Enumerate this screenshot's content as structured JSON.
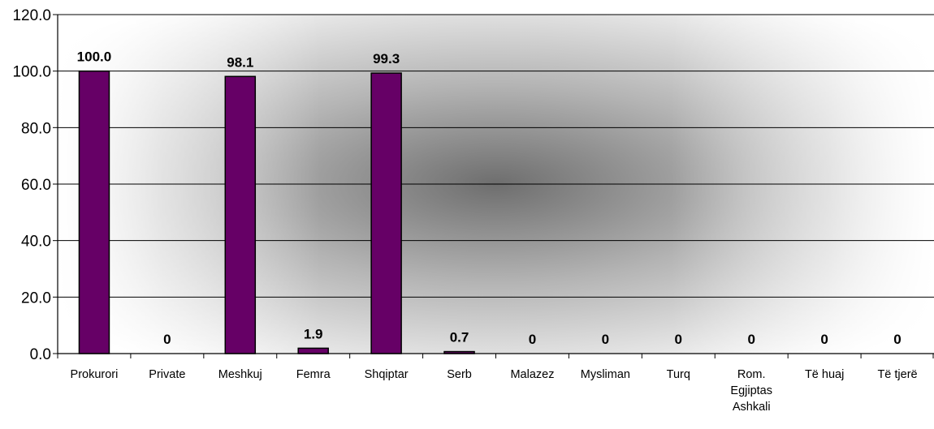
{
  "chart_data": {
    "type": "bar",
    "title": "",
    "xlabel": "",
    "ylabel": "",
    "ylim": [
      0,
      120
    ],
    "yticks": [
      0,
      20,
      40,
      60,
      80,
      100,
      120
    ],
    "ytick_labels": [
      "0.0",
      "20.0",
      "40.0",
      "60.0",
      "80.0",
      "100.0",
      "120.0"
    ],
    "grid": true,
    "legend": "none",
    "categories": [
      [
        "Prokurori"
      ],
      [
        "Private"
      ],
      [
        "Meshkuj"
      ],
      [
        "Femra"
      ],
      [
        "Shqiptar"
      ],
      [
        "Serb"
      ],
      [
        "Malazez"
      ],
      [
        "Mysliman"
      ],
      [
        "Turq"
      ],
      [
        "Rom.",
        "Egjiptas",
        "Ashkali"
      ],
      [
        "Të huaj"
      ],
      [
        "Të tjerë"
      ]
    ],
    "values": [
      100.0,
      0,
      98.1,
      1.9,
      99.3,
      0.7,
      0,
      0,
      0,
      0,
      0,
      0
    ],
    "data_labels": [
      "100.0",
      "0",
      "98.1",
      "1.9",
      "99.3",
      "0.7",
      "0",
      "0",
      "0",
      "0",
      "0",
      "0"
    ],
    "colors": {
      "bar": "#660066",
      "bar_stroke": "#000000",
      "grid": "#000000"
    }
  }
}
